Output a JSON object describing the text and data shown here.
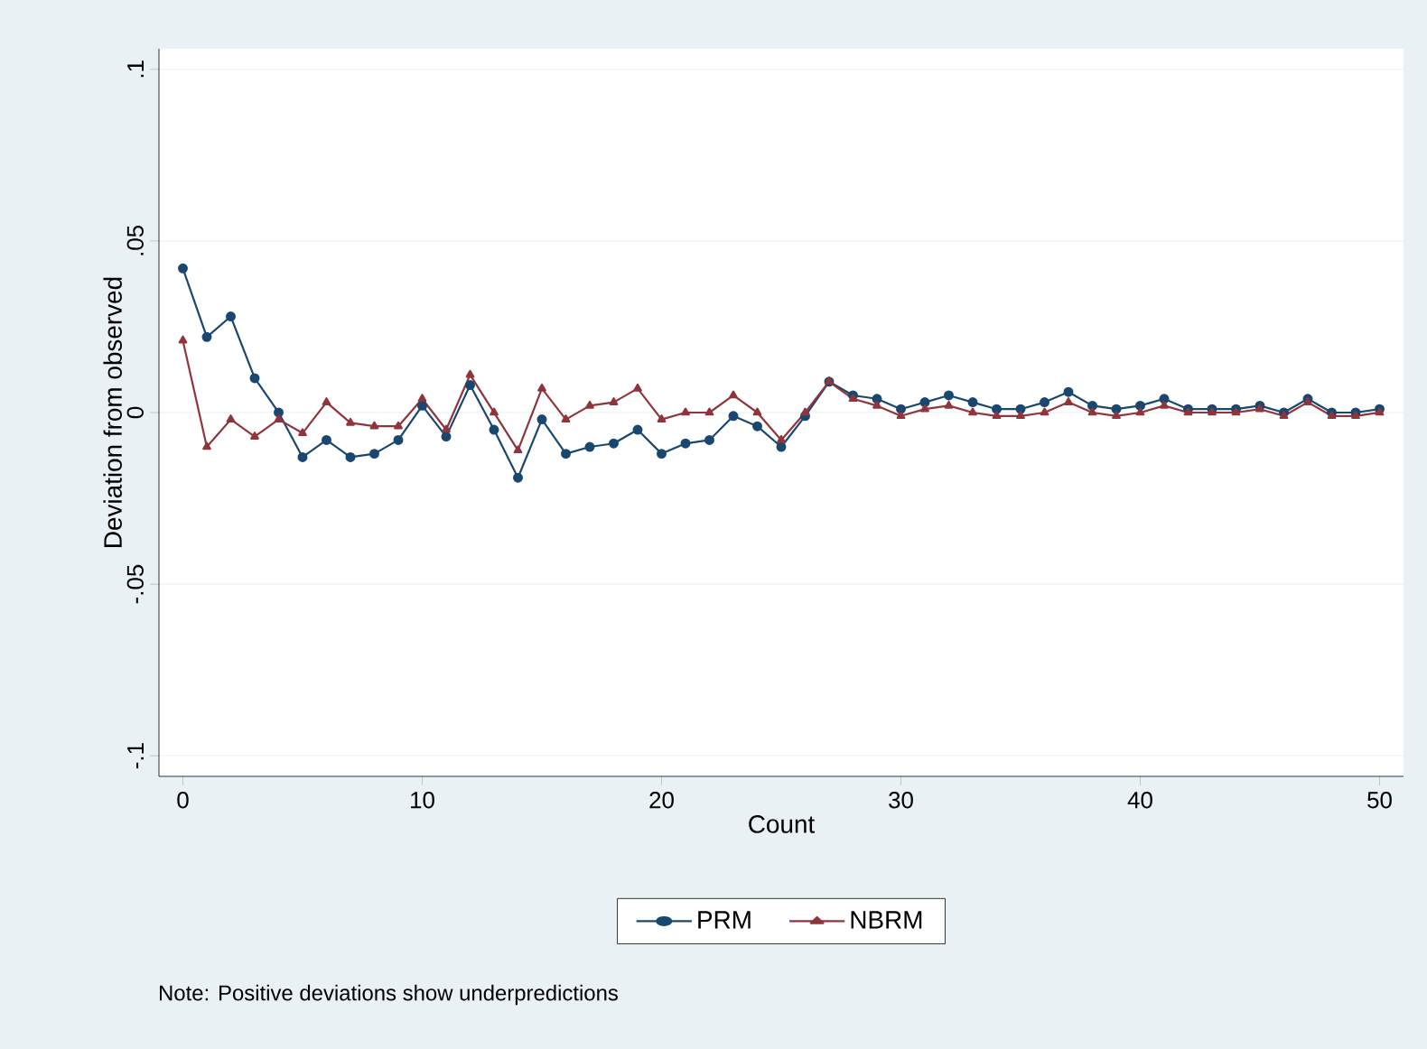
{
  "chart_data": {
    "type": "line",
    "xlabel": "Count",
    "ylabel": "Deviation from observed",
    "annotations": [
      "Note: Positive deviations show underpredictions"
    ],
    "x": [
      0,
      1,
      2,
      3,
      4,
      5,
      6,
      7,
      8,
      9,
      10,
      11,
      12,
      13,
      14,
      15,
      16,
      17,
      18,
      19,
      20,
      21,
      22,
      23,
      24,
      25,
      26,
      27,
      28,
      29,
      30,
      31,
      32,
      33,
      34,
      35,
      36,
      37,
      38,
      39,
      40,
      41,
      42,
      43,
      44,
      45,
      46,
      47,
      48,
      49,
      50
    ],
    "series": [
      {
        "name": "PRM",
        "color": "#1a476f",
        "marker": "circle",
        "values": [
          0.042,
          0.022,
          0.028,
          0.01,
          0,
          -0.013,
          -0.008,
          -0.013,
          -0.012,
          -0.008,
          0.002,
          -0.007,
          0.008,
          -0.005,
          -0.019,
          -0.002,
          -0.012,
          -0.01,
          -0.009,
          -0.005,
          -0.012,
          -0.009,
          -0.008,
          -0.001,
          -0.004,
          -0.01,
          -0.001,
          0.009,
          0.005,
          0.004,
          0.001,
          0.003,
          0.005,
          0.003,
          0.001,
          0.001,
          0.003,
          0.006,
          0.002,
          0.001,
          0.002,
          0.004,
          0.001,
          0.001,
          0.001,
          0.002,
          0,
          0.004,
          0,
          0,
          0.001
        ]
      },
      {
        "name": "NBRM",
        "color": "#90353b",
        "marker": "triangle",
        "values": [
          0.021,
          -0.01,
          -0.002,
          -0.007,
          -0.002,
          -0.006,
          0.003,
          -0.003,
          -0.004,
          -0.004,
          0.004,
          -0.005,
          0.011,
          0,
          -0.011,
          0.007,
          -0.002,
          0.002,
          0.003,
          0.007,
          -0.002,
          0,
          0,
          0.005,
          0,
          -0.008,
          0,
          0.009,
          0.004,
          0.002,
          -0.001,
          0.001,
          0.002,
          0,
          -0.001,
          -0.001,
          0,
          0.003,
          0,
          -0.001,
          0,
          0.002,
          0,
          0,
          0,
          0.001,
          -0.001,
          0.003,
          -0.001,
          -0.001,
          0
        ]
      }
    ],
    "xlim": [
      -1,
      51
    ],
    "ylim": [
      -0.106,
      0.106
    ],
    "xticks": [
      0,
      10,
      20,
      30,
      40,
      50
    ],
    "yticks": [
      {
        "value": -0.1,
        "label": "-.1"
      },
      {
        "value": -0.05,
        "label": "-.05"
      },
      {
        "value": 0,
        "label": "0"
      },
      {
        "value": 0.05,
        "label": ".05"
      },
      {
        "value": 0.1,
        "label": ".1"
      }
    ],
    "grid": "y",
    "legend": "bottom",
    "line_style": "solid"
  }
}
